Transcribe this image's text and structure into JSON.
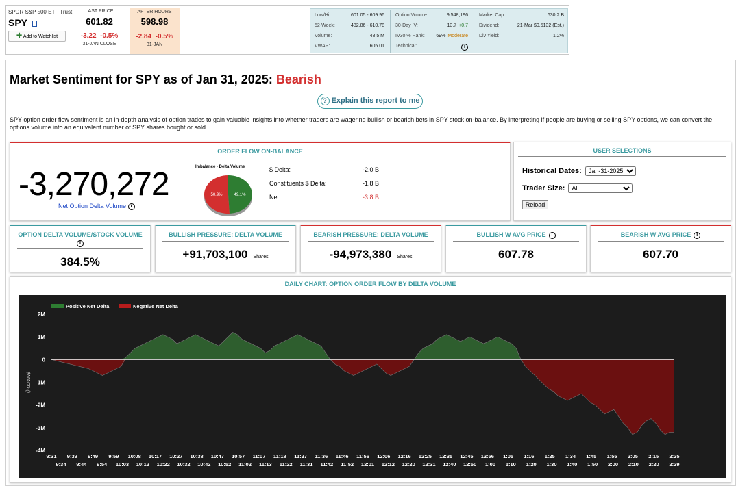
{
  "header": {
    "etf_name": "SPDR S&P 500 ETF Trust",
    "ticker": "SPY",
    "watchlist_label": "Add to Watchlist",
    "last_price_label": "LAST PRICE",
    "last_price": "601.82",
    "last_change": "-3.22",
    "last_change_pct": "-0.5%",
    "last_date": "31-JAN CLOSE",
    "after_hours_label": "AFTER HOURS",
    "after_price": "598.98",
    "after_change": "-2.84",
    "after_change_pct": "-0.5%",
    "after_date": "31-JAN"
  },
  "stats": {
    "col1": [
      {
        "label": "Low/Hi:",
        "value": "601.05 - 609.96"
      },
      {
        "label": "52-Week:",
        "value": "482.86 - 610.78"
      },
      {
        "label": "Volume:",
        "value": "48.5 M"
      },
      {
        "label": "VWAP:",
        "value": "605.01"
      }
    ],
    "col2": [
      {
        "label": "Option Volume:",
        "value": "9,548,196"
      },
      {
        "label": "30-Day IV:",
        "value": "13.7",
        "extra": "+0.7"
      },
      {
        "label": "IV30 % Rank:",
        "value": "69%",
        "extra": "Moderate"
      },
      {
        "label": "Technical:",
        "value": ""
      }
    ],
    "col3": [
      {
        "label": "Market Cap:",
        "value": "630.2 B"
      },
      {
        "label": "Dividend:",
        "value": "21-Mar $0.5132 (Est.)"
      },
      {
        "label": "Div Yield:",
        "value": "1.2%"
      }
    ]
  },
  "report": {
    "title": "Market Sentiment for SPY as of Jan 31, 2025:",
    "sentiment": "Bearish",
    "explain_label": "Explain this report to me",
    "description": "SPY option order flow sentiment is an in-depth analysis of option trades to gain valuable insights into whether traders are wagering bullish or bearish bets in SPY stock on-balance. By interpreting if people are buying or selling SPY options, we can convert the options volume into an equivalent number of SPY shares bought or sold."
  },
  "order_flow": {
    "title": "ORDER FLOW ON-BALANCE",
    "big_value": "-3,270,272",
    "link_label": "Net Option Delta Volume",
    "pie_title": "Imbalance - Delta Volume",
    "pie_red_label": "50.9%",
    "pie_green_label": "49.1%",
    "pie_red": 50.9,
    "pie_green": 49.1,
    "rows": [
      {
        "label": "$ Delta:",
        "value": "-2.0 B",
        "color": "#000000"
      },
      {
        "label": "Constituents $ Delta:",
        "value": "-1.8 B",
        "color": "#000000"
      },
      {
        "label": "Net:",
        "value": "-3.8 B",
        "color": "#d32f2f"
      }
    ]
  },
  "user_selections": {
    "title": "USER SELECTIONS",
    "hist_label": "Historical Dates:",
    "hist_value": "Jan-31-2025",
    "trader_label": "Trader Size:",
    "trader_value": "All",
    "reload_label": "Reload"
  },
  "metrics": [
    {
      "title": "OPTION DELTA VOLUME/STOCK VOLUME",
      "value": "384.5%",
      "unit": "",
      "accent": "#3b9aa0"
    },
    {
      "title": "BULLISH PRESSURE: DELTA VOLUME",
      "value": "+91,703,100",
      "unit": "Shares",
      "accent": "#3b9aa0"
    },
    {
      "title": "BEARISH PRESSURE: DELTA VOLUME",
      "value": "-94,973,380",
      "unit": "Shares",
      "accent": "#d32f2f"
    },
    {
      "title": "BULLISH W AVG PRICE",
      "value": "607.78",
      "unit": "",
      "accent": "#3b9aa0"
    },
    {
      "title": "BEARISH W AVG PRICE",
      "value": "607.70",
      "unit": "",
      "accent": "#d32f2f"
    }
  ],
  "chart_data": {
    "type": "area",
    "title": "DAILY CHART: OPTION ORDER FLOW BY DELTA VOLUME",
    "ylabel": "$MACD ()",
    "ylim": [
      -4000000,
      2000000
    ],
    "yticks": [
      {
        "v": 2000000,
        "t": "2M"
      },
      {
        "v": 1000000,
        "t": "1M"
      },
      {
        "v": 0,
        "t": "0"
      },
      {
        "v": -1000000,
        "t": "-1M"
      },
      {
        "v": -2000000,
        "t": "-2M"
      },
      {
        "v": -3000000,
        "t": "-3M"
      },
      {
        "v": -4000000,
        "t": "-4M"
      }
    ],
    "legend": [
      {
        "name": "Positive Net Delta",
        "color": "#2e7d32"
      },
      {
        "name": "Negative Net Delta",
        "color": "#b71c1c"
      }
    ],
    "xticks_top": [
      "9:31",
      "9:39",
      "9:49",
      "9:59",
      "10:08",
      "10:17",
      "10:27",
      "10:38",
      "10:47",
      "10:57",
      "11:07",
      "11:18",
      "11:27",
      "11:36",
      "11:46",
      "11:56",
      "12:06",
      "12:16",
      "12:25",
      "12:35",
      "12:45",
      "12:56",
      "1:05",
      "1:16",
      "1:25",
      "1:34",
      "1:45",
      "1:55",
      "2:05",
      "2:15",
      "2:25"
    ],
    "xticks_bottom": [
      "9:34",
      "9:44",
      "9:54",
      "10:03",
      "10:12",
      "10:22",
      "10:32",
      "10:42",
      "10:52",
      "11:02",
      "11:13",
      "11:22",
      "11:31",
      "11:42",
      "11:52",
      "12:01",
      "12:12",
      "12:20",
      "12:31",
      "12:40",
      "12:50",
      "1:00",
      "1:10",
      "1:20",
      "1:30",
      "1:40",
      "1:50",
      "2:00",
      "2:10",
      "2:20",
      "2:29"
    ],
    "values": [
      0,
      -50000,
      -100000,
      -150000,
      -200000,
      -250000,
      -300000,
      -350000,
      -400000,
      -500000,
      -600000,
      -700000,
      -600000,
      -500000,
      -400000,
      -300000,
      100000,
      300000,
      500000,
      600000,
      700000,
      800000,
      900000,
      1000000,
      1100000,
      1000000,
      900000,
      700000,
      800000,
      900000,
      1000000,
      1100000,
      1000000,
      900000,
      800000,
      700000,
      600000,
      800000,
      1000000,
      1200000,
      1100000,
      900000,
      800000,
      700000,
      600000,
      500000,
      300000,
      400000,
      600000,
      700000,
      800000,
      900000,
      1000000,
      1100000,
      1000000,
      900000,
      800000,
      700000,
      600000,
      300000,
      0,
      -200000,
      -300000,
      -500000,
      -600000,
      -700000,
      -600000,
      -500000,
      -400000,
      -300000,
      -200000,
      -400000,
      -600000,
      -700000,
      -600000,
      -500000,
      -400000,
      -300000,
      0,
      300000,
      500000,
      600000,
      700000,
      900000,
      1000000,
      1100000,
      1000000,
      900000,
      800000,
      900000,
      1000000,
      900000,
      800000,
      700000,
      800000,
      900000,
      1000000,
      900000,
      800000,
      700000,
      500000,
      0,
      -300000,
      -500000,
      -700000,
      -900000,
      -1100000,
      -1300000,
      -1400000,
      -1600000,
      -1700000,
      -1800000,
      -1700000,
      -1600000,
      -1500000,
      -1700000,
      -1900000,
      -2000000,
      -2200000,
      -2400000,
      -2300000,
      -2200000,
      -2500000,
      -2800000,
      -3000000,
      -3300000,
      -3200000,
      -2900000,
      -2700000,
      -2600000,
      -2800000,
      -3100000,
      -3300000,
      -3200000,
      -3200000
    ]
  },
  "colors": {
    "teal": "#3b9aa0",
    "red": "#d32f2f",
    "chart_bg": "#1c1c1c",
    "green_fill": "#2e5e2e",
    "red_fill": "#6b1010"
  }
}
